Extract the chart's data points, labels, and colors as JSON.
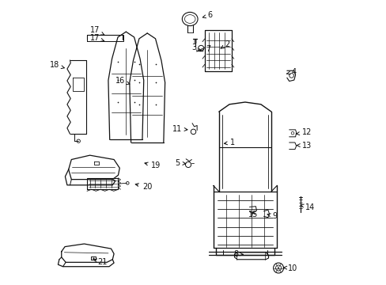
{
  "bg": "#ffffff",
  "lc": "#111111",
  "figsize": [
    4.89,
    3.6
  ],
  "dpi": 100,
  "labels": {
    "1": [
      0.598,
      0.495,
      0.63,
      0.5,
      "left"
    ],
    "2": [
      0.595,
      0.83,
      0.61,
      0.845,
      "left"
    ],
    "3": [
      0.53,
      0.82,
      0.51,
      0.835,
      "right"
    ],
    "4": [
      0.82,
      0.74,
      0.845,
      0.748,
      "left"
    ],
    "5": [
      0.476,
      0.425,
      0.453,
      0.428,
      "right"
    ],
    "6": [
      0.53,
      0.94,
      0.55,
      0.948,
      "left"
    ],
    "7": [
      0.52,
      0.825,
      0.543,
      0.828,
      "left"
    ],
    "8": [
      0.685,
      0.105,
      0.66,
      0.108,
      "right"
    ],
    "9": [
      0.758,
      0.248,
      0.778,
      0.24,
      "left"
    ],
    "10": [
      0.808,
      0.06,
      0.832,
      0.058,
      "left"
    ],
    "11": [
      0.482,
      0.545,
      0.46,
      0.548,
      "right"
    ],
    "12": [
      0.86,
      0.53,
      0.882,
      0.535,
      "left"
    ],
    "13": [
      0.862,
      0.49,
      0.882,
      0.49,
      "left"
    ],
    "14": [
      0.875,
      0.28,
      0.895,
      0.272,
      "left"
    ],
    "15": [
      0.705,
      0.265,
      0.695,
      0.245,
      "left"
    ],
    "16": [
      0.278,
      0.705,
      0.258,
      0.718,
      "right"
    ],
    "17": [
      0.195,
      0.855,
      0.17,
      0.868,
      "right"
    ],
    "18": [
      0.048,
      0.762,
      0.028,
      0.772,
      "right"
    ],
    "19": [
      0.318,
      0.43,
      0.35,
      0.418,
      "left"
    ],
    "20": [
      0.285,
      0.355,
      0.32,
      0.345,
      "left"
    ],
    "21": [
      0.138,
      0.09,
      0.162,
      0.08,
      "left"
    ]
  }
}
